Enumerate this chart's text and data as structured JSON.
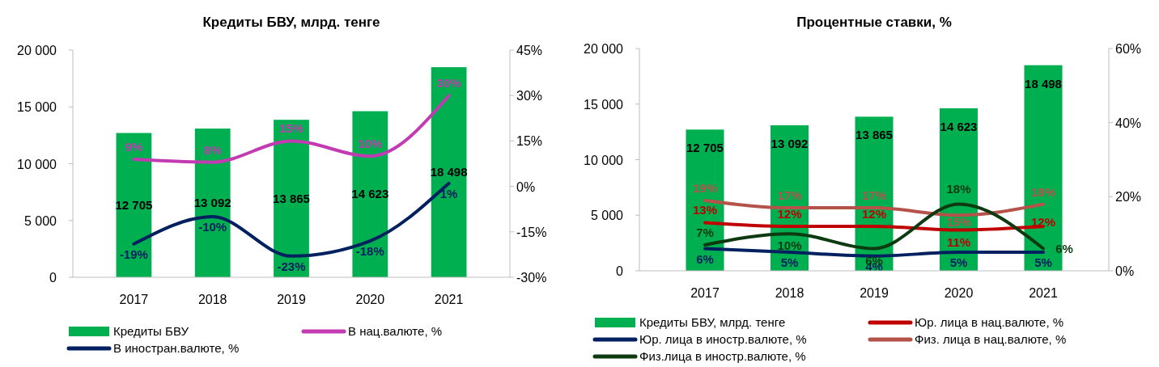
{
  "chart_data": [
    {
      "type": "bar",
      "title": "Кредиты БВУ, млрд. тенге",
      "categories": [
        "2017",
        "2018",
        "2019",
        "2020",
        "2021"
      ],
      "ylim": [
        0,
        20000
      ],
      "yticks": [
        {
          "value": 0,
          "label": "0"
        },
        {
          "value": 5000,
          "label": "5 000"
        },
        {
          "value": 10000,
          "label": "10 000"
        },
        {
          "value": 15000,
          "label": "15 000"
        },
        {
          "value": 20000,
          "label": "20 000"
        }
      ],
      "y2lim": [
        -30,
        45
      ],
      "y2ticks": [
        {
          "value": -30,
          "label": "-30%"
        },
        {
          "value": -15,
          "label": "-15%"
        },
        {
          "value": 0,
          "label": "0%"
        },
        {
          "value": 15,
          "label": "15%"
        },
        {
          "value": 30,
          "label": "30%"
        },
        {
          "value": 45,
          "label": "45%"
        }
      ],
      "grid": false,
      "legend": "bottom",
      "marker": "none",
      "line_style": "solid",
      "series": [
        {
          "name": "Кредиты БВУ",
          "color": "#00b050",
          "values": [
            12705,
            13092,
            13865,
            14623,
            18498
          ],
          "value_labels": [
            "12 705",
            "13 092",
            "13 865",
            "14 623",
            "18 498"
          ]
        },
        {
          "name": "В нац.валюте, %",
          "type": "line",
          "axis": "y2",
          "color": "#c23bb3",
          "values": [
            9,
            8,
            15,
            10,
            30
          ],
          "value_labels": [
            "9%",
            "8%",
            "15%",
            "10%",
            "30%"
          ]
        },
        {
          "name": "В иностран.валюте, %",
          "type": "line",
          "axis": "y2",
          "color": "#002060",
          "values": [
            -19,
            -10,
            -23,
            -18,
            1
          ],
          "value_labels": [
            "-19%",
            "-10%",
            "-23%",
            "-18%",
            "1%"
          ]
        }
      ]
    },
    {
      "type": "bar",
      "title": "Процентные ставки, %",
      "categories": [
        "2017",
        "2018",
        "2019",
        "2020",
        "2021"
      ],
      "ylim": [
        0,
        20000
      ],
      "yticks": [
        {
          "value": 0,
          "label": "0"
        },
        {
          "value": 5000,
          "label": "5 000"
        },
        {
          "value": 10000,
          "label": "10 000"
        },
        {
          "value": 15000,
          "label": "15 000"
        },
        {
          "value": 20000,
          "label": "20 000"
        }
      ],
      "y2lim": [
        0,
        60
      ],
      "y2ticks": [
        {
          "value": 0,
          "label": "0%"
        },
        {
          "value": 20,
          "label": "20%"
        },
        {
          "value": 40,
          "label": "40%"
        },
        {
          "value": 60,
          "label": "60%"
        }
      ],
      "grid": false,
      "legend": "bottom",
      "marker": "none",
      "line_style": "solid",
      "series": [
        {
          "name": "Кредиты БВУ, млрд. тенге",
          "color": "#00b050",
          "values": [
            12705,
            13092,
            13865,
            14623,
            18498
          ],
          "value_labels": [
            "12 705",
            "13 092",
            "13 865",
            "14 623",
            "18 498"
          ]
        },
        {
          "name": "Юр. лица в нац.валюте, %",
          "type": "line",
          "axis": "y2",
          "color": "#c00000",
          "values": [
            13,
            12,
            12,
            11,
            12
          ],
          "value_labels": [
            "13%",
            "12%",
            "12%",
            "11%",
            "12%"
          ]
        },
        {
          "name": "Юр. лица в иностр.валюте, %",
          "type": "line",
          "axis": "y2",
          "color": "#002060",
          "values": [
            6,
            5,
            4,
            5,
            5
          ],
          "value_labels": [
            "6%",
            "5%",
            "4%",
            "5%",
            "5%"
          ]
        },
        {
          "name": "Физ. лица в нац.валюте, %",
          "type": "line",
          "axis": "y2",
          "color": "#b5524a",
          "values": [
            19,
            17,
            17,
            15,
            18
          ],
          "value_labels": [
            "19%",
            "17%",
            "17%",
            "15%",
            "18%"
          ]
        },
        {
          "name": "Физ.лица в иностр.валюте, %",
          "type": "line",
          "axis": "y2",
          "color": "#0d3a10",
          "values": [
            7,
            10,
            6,
            18,
            6
          ],
          "value_labels": [
            "7%",
            "10%",
            "6%",
            "18%",
            "6%"
          ]
        }
      ]
    }
  ]
}
